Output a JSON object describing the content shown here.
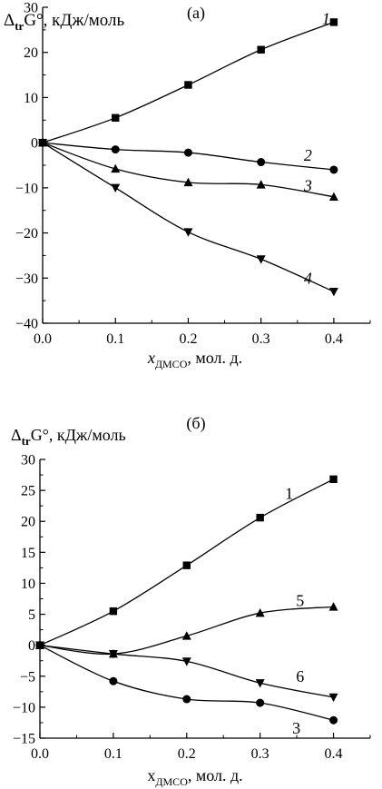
{
  "panels": [
    {
      "letter": "(а)",
      "ylabel_prefix": "Δ",
      "ylabel_sub": "tr",
      "ylabel_main": "G°, кДж/моль",
      "xlabel_main": "x",
      "xlabel_sub": "ДМСО",
      "xlabel_rest": ", мол. д."
    },
    {
      "letter": "(б)",
      "ylabel_prefix": "Δ",
      "ylabel_sub": "tr",
      "ylabel_main": "G°, кДж/моль",
      "xlabel_main": "x",
      "xlabel_sub": "ДМСО",
      "xlabel_rest": ", мол. д."
    }
  ],
  "chart_data": [
    {
      "type": "line",
      "title": "(а)",
      "xlabel": "xДМСО, мол. д.",
      "ylabel": "ΔtrG°, кДж/моль",
      "xlim": [
        0.0,
        0.45
      ],
      "ylim": [
        -40,
        30
      ],
      "x_ticks": [
        0.0,
        0.1,
        0.2,
        0.3,
        0.4
      ],
      "x_tick_labels": [
        "0.0",
        "0.1",
        "0.2",
        "0.3",
        "0.4"
      ],
      "y_ticks": [
        30,
        20,
        10,
        0,
        -10,
        -20,
        -30,
        -40
      ],
      "y_tick_labels": [
        "30",
        "20",
        "10",
        "0",
        "−10",
        "−20",
        "−30",
        "−40"
      ],
      "x": [
        0.0,
        0.1,
        0.2,
        0.3,
        0.4
      ],
      "series": [
        {
          "label": "1",
          "marker": "square",
          "values": [
            0,
            5.5,
            12.8,
            20.6,
            26.7
          ]
        },
        {
          "label": "2",
          "marker": "circle",
          "values": [
            0,
            -1.5,
            -2.2,
            -4.3,
            -6.0
          ]
        },
        {
          "label": "3",
          "marker": "triangle-up",
          "values": [
            0,
            -5.8,
            -8.8,
            -9.3,
            -12.0
          ]
        },
        {
          "label": "4",
          "marker": "triangle-down",
          "values": [
            0,
            -10.0,
            -19.8,
            -25.8,
            -33.0
          ]
        }
      ]
    },
    {
      "type": "line",
      "title": "(б)",
      "xlabel": "xДМСО, мол. д.",
      "ylabel": "ΔtrG°, кДж/моль",
      "xlim": [
        0.0,
        0.45
      ],
      "ylim": [
        -15,
        30
      ],
      "x_ticks": [
        0.0,
        0.1,
        0.2,
        0.3,
        0.4
      ],
      "x_tick_labels": [
        "0.0",
        "0.1",
        "0.2",
        "0.3",
        "0.4"
      ],
      "y_ticks": [
        30,
        25,
        20,
        15,
        10,
        5,
        0,
        -5,
        -10,
        -15
      ],
      "y_tick_labels": [
        "30",
        "25",
        "20",
        "15",
        "10",
        "5",
        "0",
        "−5",
        "−10",
        "−15"
      ],
      "x": [
        0.0,
        0.1,
        0.2,
        0.3,
        0.4
      ],
      "series": [
        {
          "label": "1",
          "marker": "square",
          "values": [
            0,
            5.5,
            12.9,
            20.6,
            26.8
          ]
        },
        {
          "label": "5",
          "marker": "triangle-up",
          "values": [
            0,
            -1.4,
            1.5,
            5.2,
            6.2
          ]
        },
        {
          "label": "6",
          "marker": "triangle-down",
          "values": [
            0,
            -1.4,
            -2.6,
            -6.1,
            -8.4
          ]
        },
        {
          "label": "3",
          "marker": "circle",
          "values": [
            0,
            -5.8,
            -8.7,
            -9.3,
            -12.1
          ]
        }
      ]
    }
  ]
}
